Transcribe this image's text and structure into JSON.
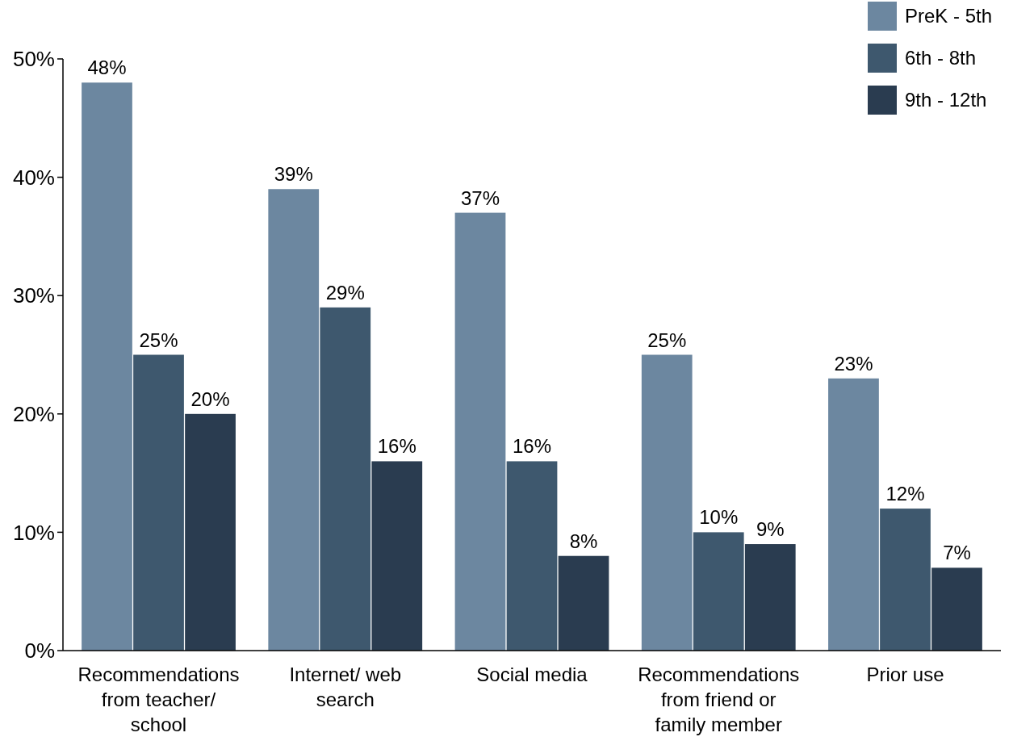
{
  "chart_data": {
    "type": "bar",
    "categories": [
      "Recommendations from teacher/ school",
      "Internet/ web search",
      "Social media",
      "Recommendations from friend or family member",
      "Prior use"
    ],
    "series": [
      {
        "name": "PreK - 5th",
        "color": "#6c87a0",
        "values": [
          48,
          39,
          37,
          25,
          23
        ],
        "value_labels": [
          "48%",
          "39%",
          "37%",
          "25%",
          "23%"
        ]
      },
      {
        "name": "6th - 8th",
        "color": "#3e586e",
        "values": [
          25,
          29,
          16,
          10,
          12
        ],
        "value_labels": [
          "25%",
          "29%",
          "16%",
          "10%",
          "12%"
        ]
      },
      {
        "name": "9th - 12th",
        "color": "#2a3c50",
        "values": [
          20,
          16,
          8,
          9,
          7
        ],
        "value_labels": [
          "20%",
          "16%",
          "8%",
          "9%",
          "7%"
        ]
      }
    ],
    "ylim": [
      0,
      50
    ],
    "yticks": [
      {
        "value": 0,
        "label": "0%"
      },
      {
        "value": 10,
        "label": "10%"
      },
      {
        "value": 20,
        "label": "20%"
      },
      {
        "value": 30,
        "label": "30%"
      },
      {
        "value": 40,
        "label": "40%"
      },
      {
        "value": 50,
        "label": "50%"
      }
    ],
    "grid": false,
    "legend": "top right"
  }
}
